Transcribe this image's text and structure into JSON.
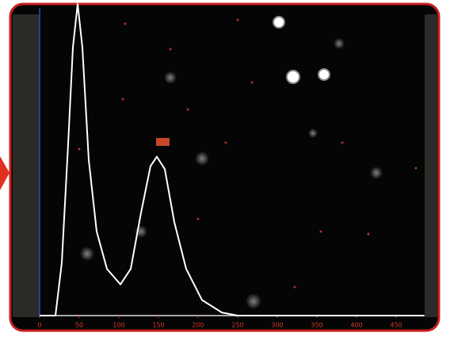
{
  "chart_data": {
    "type": "line",
    "x": [
      0,
      20,
      28,
      36,
      42,
      48,
      54,
      62,
      72,
      85,
      102,
      115,
      128,
      140,
      148,
      158,
      170,
      185,
      205,
      230,
      250,
      485
    ],
    "values": [
      0,
      0,
      17,
      55,
      86,
      100,
      86,
      50,
      27,
      15,
      10,
      15,
      33,
      48,
      51,
      47,
      30,
      15,
      5,
      1,
      0,
      0
    ],
    "color": "#ffffff",
    "xlim": [
      0,
      485
    ],
    "ylim": [
      0,
      100
    ],
    "xticks": [
      0,
      50,
      100,
      150,
      200,
      250,
      300,
      350,
      400,
      450
    ],
    "tick_color": "#d23a2a"
  }
}
